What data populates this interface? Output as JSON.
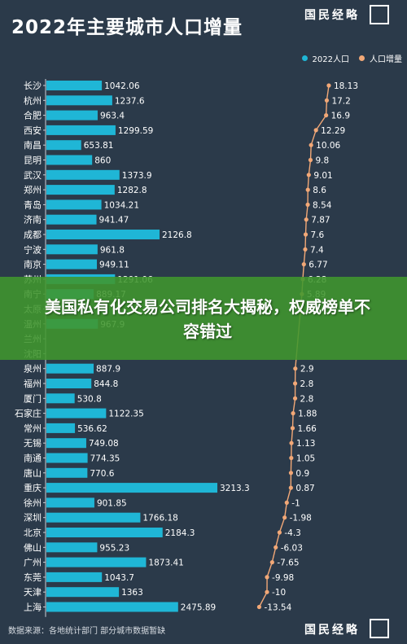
{
  "title": "2022年主要城市人口增量",
  "brand": "国民经略",
  "source": "数据来源：各地统计部门 部分城市数据暂缺",
  "banner": "美国私有化交易公司排名大揭秘，权威榜单不容错过",
  "colors": {
    "bar": "#1fb6d6",
    "line": "#f2a877",
    "background": "#2b3a4a",
    "banner": "#40962e"
  },
  "chart_data": {
    "type": "bar",
    "orientation": "horizontal",
    "title": "2022年主要城市人口增量",
    "legend_position": "top-right",
    "categories": [
      "长沙",
      "杭州",
      "合肥",
      "西安",
      "南昌",
      "昆明",
      "武汉",
      "郑州",
      "青岛",
      "济南",
      "成都",
      "宁波",
      "南京",
      "苏州",
      "南宁",
      "太原",
      "温州",
      "兰州",
      "沈阳",
      "泉州",
      "福州",
      "厦门",
      "石家庄",
      "常州",
      "无锡",
      "南通",
      "唐山",
      "重庆",
      "徐州",
      "深圳",
      "北京",
      "佛山",
      "广州",
      "东莞",
      "天津",
      "上海"
    ],
    "series": [
      {
        "name": "2022人口",
        "type": "bar",
        "values": [
          1042.06,
          1237.6,
          963.4,
          1299.59,
          653.81,
          860,
          1373.9,
          1282.8,
          1034.21,
          941.47,
          2126.8,
          961.8,
          949.11,
          1291.06,
          889.17,
          null,
          967.9,
          null,
          null,
          887.9,
          844.8,
          530.8,
          1122.35,
          536.62,
          749.08,
          774.35,
          770.6,
          3213.3,
          901.85,
          1766.18,
          2184.3,
          955.23,
          1873.41,
          1043.7,
          1363,
          2475.89
        ]
      },
      {
        "name": "人口增量",
        "type": "line",
        "values": [
          18.13,
          17.2,
          16.9,
          12.29,
          10.06,
          9.8,
          9.01,
          8.6,
          8.54,
          7.87,
          7.6,
          7.4,
          6.77,
          6.28,
          5.89,
          null,
          null,
          null,
          null,
          2.9,
          2.8,
          2.8,
          1.88,
          1.66,
          1.13,
          1.05,
          0.9,
          0.87,
          -1,
          -1.98,
          -4.3,
          -6.03,
          -7.65,
          -9.98,
          -10,
          -13.54
        ]
      }
    ]
  }
}
